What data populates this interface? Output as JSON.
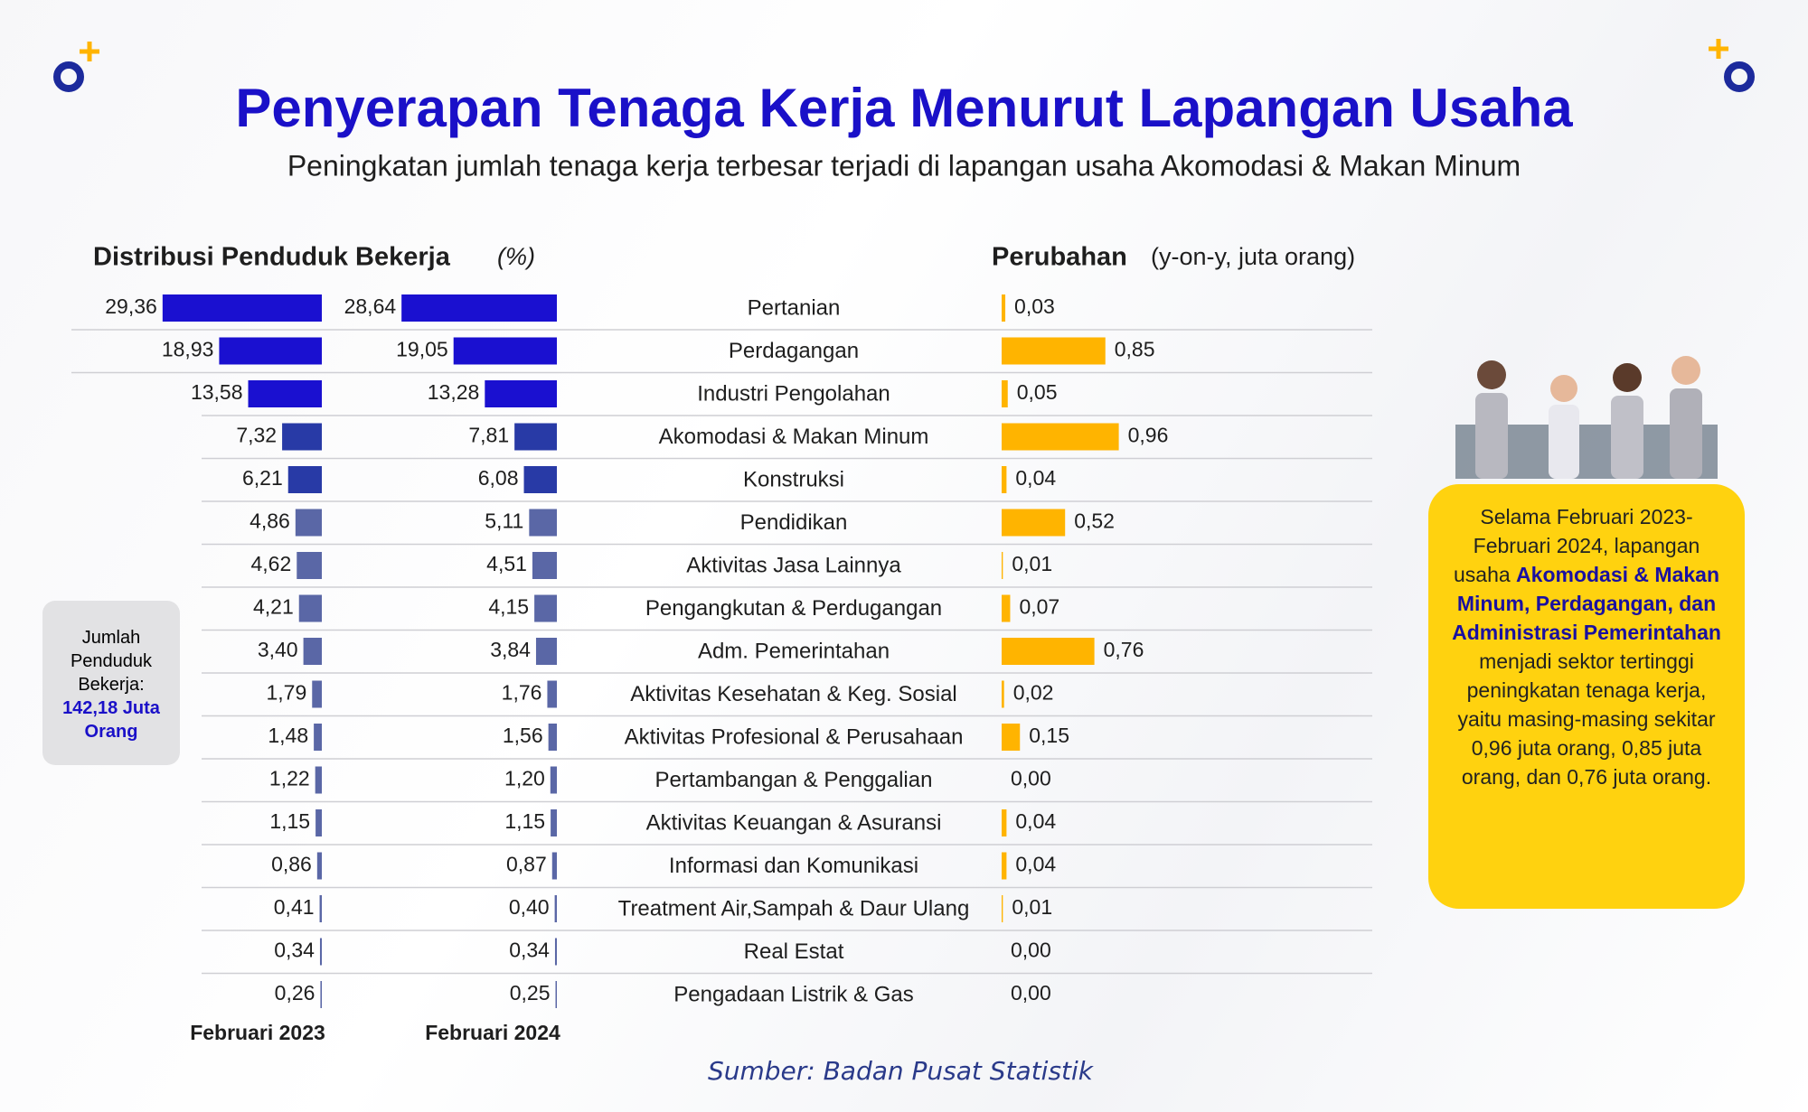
{
  "title": "Penyerapan Tenaga Kerja Menurut Lapangan Usaha",
  "subtitle": "Peningkatan jumlah tenaga kerja terbesar terjadi di lapangan usaha Akomodasi & Makan Minum",
  "total_box": {
    "label": "Jumlah Penduduk Bekerja:",
    "value": "142,18 Juta Orang"
  },
  "callout": [
    {
      "text": "Selama Februari 2023-Februari 2024, lapangan usaha ",
      "bold": false
    },
    {
      "text": "Akomodasi & Makan Minum, Perdagangan, dan Administrasi Pemerintahan",
      "bold": true
    },
    {
      "text": " menjadi sektor tertinggi peningkatan tenaga kerja, yaitu masing-masing sekitar 0,96 juta orang, 0,85 juta orang, dan 0,76 juta orang.",
      "bold": false
    }
  ],
  "source": "Sumber: Badan Pusat Statistik",
  "chart_data": [
    {
      "type": "hbar",
      "title": "Distribusi Penduduk Bekerja",
      "unit": "(%)",
      "categories": [
        "Pertanian",
        "Perdagangan",
        "Industri Pengolahan",
        "Akomodasi & Makan Minum",
        "Konstruksi",
        "Pendidikan",
        "Aktivitas Jasa Lainnya",
        "Pengangkutan & Perdugangan",
        "Adm. Pemerintahan",
        "Aktivitas Kesehatan & Keg. Sosial",
        "Aktivitas Profesional & Perusahaan",
        "Pertambangan & Penggalian",
        "Aktivitas Keuangan & Asuransi",
        "Informasi dan Komunikasi",
        "Treatment Air,Sampah & Daur Ulang",
        "Real Estat",
        "Pengadaan Listrik & Gas"
      ],
      "series": [
        {
          "name": "Februari 2023",
          "values": [
            29.36,
            18.93,
            13.58,
            7.32,
            6.21,
            4.86,
            4.62,
            4.21,
            3.4,
            1.79,
            1.48,
            1.22,
            1.15,
            0.86,
            0.41,
            0.34,
            0.26
          ],
          "value_labels": [
            "29,36",
            "18,93",
            "13,58",
            "7,32",
            "6,21",
            "4,86",
            "4,62",
            "4,21",
            "3,40",
            "1,79",
            "1,48",
            "1,22",
            "1,15",
            "0,86",
            "0,41",
            "0,34",
            "0,26"
          ],
          "colors": [
            "#1a10d0",
            "#1a10d0",
            "#1a10d0",
            "#283aa6",
            "#283aa6",
            "#5a67a6",
            "#5a67a6",
            "#5a67a6",
            "#5a67a6",
            "#5a67a6",
            "#5a67a6",
            "#5a67a6",
            "#5a67a6",
            "#5a67a6",
            "#5a67a6",
            "#5a67a6",
            "#5a67a6"
          ]
        },
        {
          "name": "Februari 2024",
          "values": [
            28.64,
            19.05,
            13.28,
            7.81,
            6.08,
            5.11,
            4.51,
            4.15,
            3.84,
            1.76,
            1.56,
            1.2,
            1.15,
            0.87,
            0.4,
            0.34,
            0.25
          ],
          "value_labels": [
            "28,64",
            "19,05",
            "13,28",
            "7,81",
            "6,08",
            "5,11",
            "4,51",
            "4,15",
            "3,84",
            "1,76",
            "1,56",
            "1,20",
            "1,15",
            "0,87",
            "0,40",
            "0,34",
            "0,25"
          ],
          "colors": [
            "#1a10d0",
            "#1a10d0",
            "#1a10d0",
            "#283aa6",
            "#283aa6",
            "#5a67a6",
            "#5a67a6",
            "#5a67a6",
            "#5a67a6",
            "#5a67a6",
            "#5a67a6",
            "#5a67a6",
            "#5a67a6",
            "#5a67a6",
            "#5a67a6",
            "#5a67a6",
            "#5a67a6"
          ]
        }
      ]
    },
    {
      "type": "hbar",
      "title": "Perubahan",
      "unit": "(y-on-y, juta orang)",
      "color": "#ffb400",
      "values": [
        0.03,
        0.85,
        0.05,
        0.96,
        0.04,
        0.52,
        0.01,
        0.07,
        0.76,
        0.02,
        0.15,
        0.0,
        0.04,
        0.04,
        0.01,
        0.0,
        0.0
      ],
      "value_labels": [
        "0,03",
        "0,85",
        "0,05",
        "0,96",
        "0,04",
        "0,52",
        "0,01",
        "0,07",
        "0,76",
        "0,02",
        "0,15",
        "0,00",
        "0,04",
        "0,04",
        "0,01",
        "0,00",
        "0,00"
      ]
    }
  ]
}
